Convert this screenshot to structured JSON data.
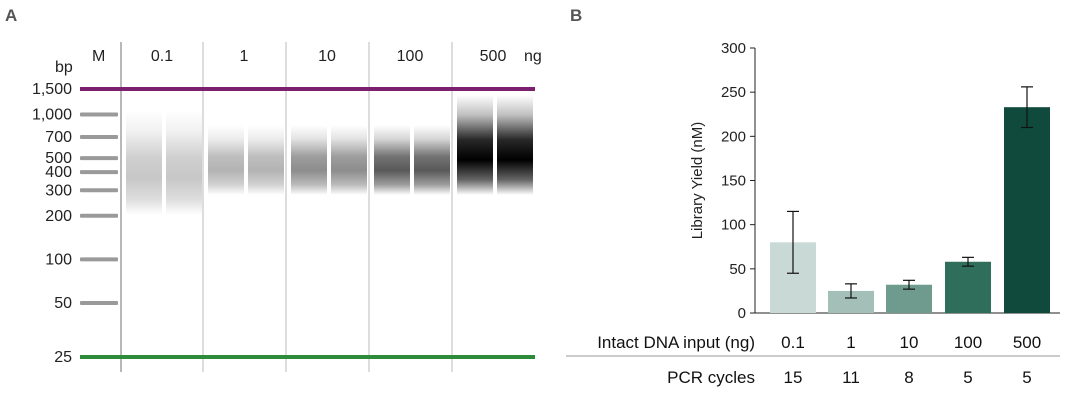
{
  "panels": {
    "a": "A",
    "b": "B"
  },
  "gel": {
    "unit_bp": "bp",
    "marker_label": "M",
    "unit_ng": "ng",
    "ladder": [
      {
        "label": "1,500",
        "bp": 1500
      },
      {
        "label": "1,000",
        "bp": 1000
      },
      {
        "label": "700",
        "bp": 700
      },
      {
        "label": "500",
        "bp": 500
      },
      {
        "label": "400",
        "bp": 400
      },
      {
        "label": "300",
        "bp": 300
      },
      {
        "label": "200",
        "bp": 200
      },
      {
        "label": "100",
        "bp": 100
      },
      {
        "label": "50",
        "bp": 50
      },
      {
        "label": "25",
        "bp": 25
      }
    ],
    "groups": [
      {
        "label": "0.1",
        "intensity": 0.22
      },
      {
        "label": "1",
        "intensity": 0.3
      },
      {
        "label": "10",
        "intensity": 0.45
      },
      {
        "label": "100",
        "intensity": 0.65
      },
      {
        "label": "500",
        "intensity": 1.0
      }
    ],
    "upper_marker_color": "#7b1f6e",
    "lower_marker_color": "#2e8b3a"
  },
  "chart_data": {
    "type": "bar",
    "categories": [
      "0.1",
      "1",
      "10",
      "100",
      "500"
    ],
    "values": [
      80,
      25,
      32,
      58,
      233
    ],
    "error": [
      35,
      8,
      5,
      5,
      23
    ],
    "ylabel": "Library Yield (nM)",
    "ylim": [
      0,
      300
    ],
    "yticks": [
      0,
      50,
      100,
      150,
      200,
      250,
      300
    ],
    "colors": [
      "#c9d9d5",
      "#a3bfb7",
      "#6f9b8e",
      "#2e6e5b",
      "#0f4a3c"
    ],
    "row_labels": {
      "input": "Intact DNA input (ng)",
      "cycles": "PCR cycles"
    },
    "pcr_cycles": [
      "15",
      "11",
      "8",
      "5",
      "5"
    ]
  }
}
